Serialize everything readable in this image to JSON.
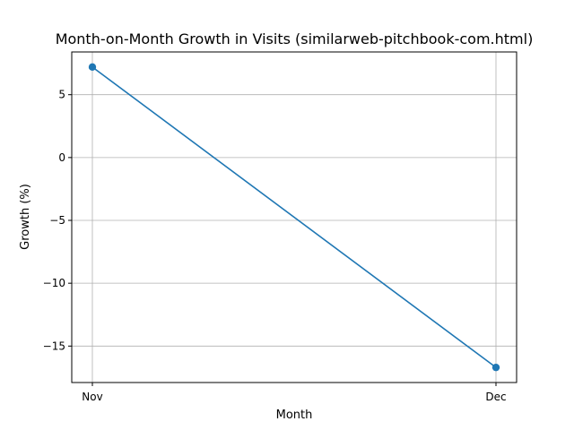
{
  "chart_data": {
    "type": "line",
    "title": "Month-on-Month Growth in Visits (similarweb-pitchbook-com.html)",
    "xlabel": "Month",
    "ylabel": "Growth (%)",
    "categories": [
      "Nov",
      "Dec"
    ],
    "series": [
      {
        "values": [
          7.2,
          -16.7
        ]
      }
    ],
    "ylim": [
      -17.9,
      8.4
    ],
    "yticks": [
      5,
      0,
      -5,
      -10,
      -15
    ],
    "ytick_labels": [
      "5",
      "0",
      "−10",
      "−15"
    ],
    "ytick_labels_all": [
      "5",
      "0",
      "−5",
      "−10",
      "−15"
    ],
    "grid": true,
    "line_color": "#1f77b4",
    "grid_color": "#b0b0b0"
  }
}
